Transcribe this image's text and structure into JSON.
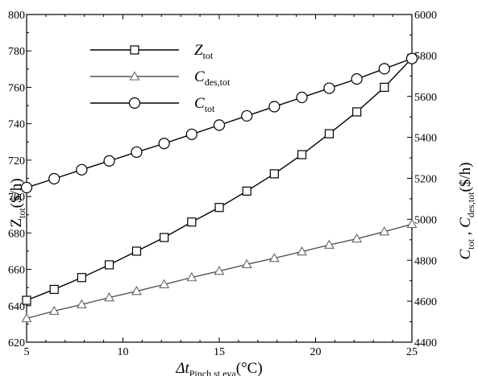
{
  "chart_data": {
    "type": "line",
    "xlabel": {
      "base": "Δt",
      "sub": "Pinch,st,eva",
      "unit": "(°C)"
    },
    "ylabel_left": {
      "base": "Z",
      "sub": "tot",
      "unit": "($/h)"
    },
    "ylabel_right": {
      "base1": "C",
      "sub1": "tot",
      "sep": " , ",
      "base2": "C",
      "sub2": "des,tot",
      "unit": "($/h)"
    },
    "xlim": [
      5,
      25
    ],
    "ylim_left": [
      620,
      800
    ],
    "ylim_right": [
      4400,
      6000
    ],
    "x_ticks": [
      "5",
      "10",
      "15",
      "20",
      "25"
    ],
    "y_left_ticks": [
      "620",
      "640",
      "660",
      "680",
      "700",
      "720",
      "740",
      "760",
      "780",
      "800"
    ],
    "y_right_ticks": [
      "4400",
      "4600",
      "4800",
      "5000",
      "5200",
      "5400",
      "5600",
      "5800",
      "6000"
    ],
    "grid": false,
    "legend_position": "top-left",
    "x": [
      5.0,
      6.43,
      7.86,
      9.29,
      10.71,
      12.14,
      13.57,
      15.0,
      16.43,
      17.86,
      19.29,
      20.71,
      22.14,
      23.57,
      25.0
    ],
    "series": [
      {
        "name": {
          "base": "Z",
          "sub": "tot"
        },
        "marker": "square",
        "axis": "left",
        "values": [
          643,
          649,
          655.5,
          662.5,
          670,
          677.5,
          686,
          694,
          703,
          712.5,
          723,
          734.5,
          746.5,
          760,
          776
        ]
      },
      {
        "name": {
          "base": "C",
          "sub": "des,tot"
        },
        "marker": "triangle",
        "axis": "right",
        "values": [
          4516,
          4552,
          4584,
          4618,
          4649,
          4682,
          4716,
          4747,
          4780,
          4810,
          4842,
          4875,
          4905,
          4940,
          4976
        ]
      },
      {
        "name": {
          "base": "C",
          "sub": "tot"
        },
        "marker": "circle",
        "axis": "right",
        "values": [
          5155,
          5198,
          5242,
          5285,
          5328,
          5370,
          5415,
          5460,
          5505,
          5550,
          5595,
          5640,
          5685,
          5735,
          5785
        ]
      }
    ]
  }
}
